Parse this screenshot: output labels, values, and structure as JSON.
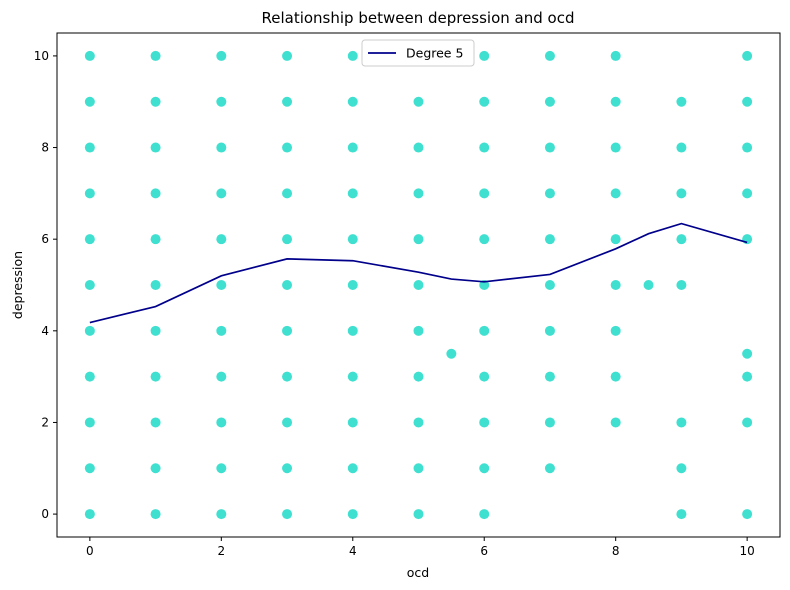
{
  "chart_data": {
    "type": "scatter",
    "title": "Relationship between depression and ocd",
    "xlabel": "ocd",
    "ylabel": "depression",
    "xlim": [
      -0.5,
      10.5
    ],
    "ylim": [
      -0.5,
      10.5
    ],
    "xticks": [
      0,
      2,
      4,
      6,
      8,
      10
    ],
    "yticks": [
      0,
      2,
      4,
      6,
      8,
      10
    ],
    "grid": false,
    "legend": {
      "placement": "upper-center",
      "entries": [
        "Degree 5"
      ]
    },
    "colors": {
      "points": "#40e0d0",
      "fit_line": "#00008b"
    },
    "scatter_points": {
      "x": [
        0,
        0,
        0,
        0,
        0,
        0,
        0,
        0,
        0,
        0,
        0,
        1,
        1,
        1,
        1,
        1,
        1,
        1,
        1,
        1,
        1,
        1,
        2,
        2,
        2,
        2,
        2,
        2,
        2,
        2,
        2,
        2,
        2,
        3,
        3,
        3,
        3,
        3,
        3,
        3,
        3,
        3,
        3,
        3,
        4,
        4,
        4,
        4,
        4,
        4,
        4,
        4,
        4,
        4,
        4,
        5,
        5,
        5,
        5,
        5,
        5,
        5,
        5,
        5,
        5,
        5,
        5.5,
        6,
        6,
        6,
        6,
        6,
        6,
        6,
        6,
        6,
        6,
        6,
        7,
        7,
        7,
        7,
        7,
        7,
        7,
        7,
        7,
        7,
        8,
        8,
        8,
        8,
        8,
        8,
        8,
        8,
        8,
        8.5,
        9,
        9,
        9,
        9,
        9,
        9,
        9,
        9,
        10,
        10,
        10,
        10,
        10,
        10,
        10,
        10,
        10
      ],
      "y": [
        0,
        1,
        2,
        3,
        4,
        5,
        6,
        7,
        8,
        9,
        10,
        0,
        1,
        2,
        3,
        4,
        5,
        6,
        7,
        8,
        9,
        10,
        0,
        1,
        2,
        3,
        4,
        5,
        6,
        7,
        8,
        9,
        10,
        0,
        1,
        2,
        3,
        4,
        5,
        6,
        7,
        8,
        9,
        10,
        0,
        1,
        2,
        3,
        4,
        5,
        6,
        7,
        8,
        9,
        10,
        0,
        1,
        2,
        3,
        4,
        5,
        6,
        7,
        8,
        9,
        10,
        3.5,
        0,
        1,
        2,
        3,
        4,
        5,
        6,
        7,
        8,
        9,
        10,
        1,
        2,
        3,
        4,
        5,
        6,
        7,
        8,
        9,
        10,
        2,
        3,
        4,
        5,
        6,
        7,
        8,
        9,
        10,
        5,
        0,
        1,
        2,
        5,
        6,
        7,
        8,
        9,
        0,
        2,
        3,
        3.5,
        6,
        7,
        8,
        9,
        10
      ]
    },
    "series": [
      {
        "name": "Degree 5",
        "type": "line",
        "x": [
          0,
          1,
          2,
          3,
          4,
          5,
          5.5,
          6,
          7,
          8,
          8.5,
          9,
          10
        ],
        "y": [
          4.18,
          4.53,
          5.2,
          5.57,
          5.53,
          5.28,
          5.13,
          5.07,
          5.23,
          5.79,
          6.12,
          6.34,
          5.93
        ]
      }
    ]
  }
}
